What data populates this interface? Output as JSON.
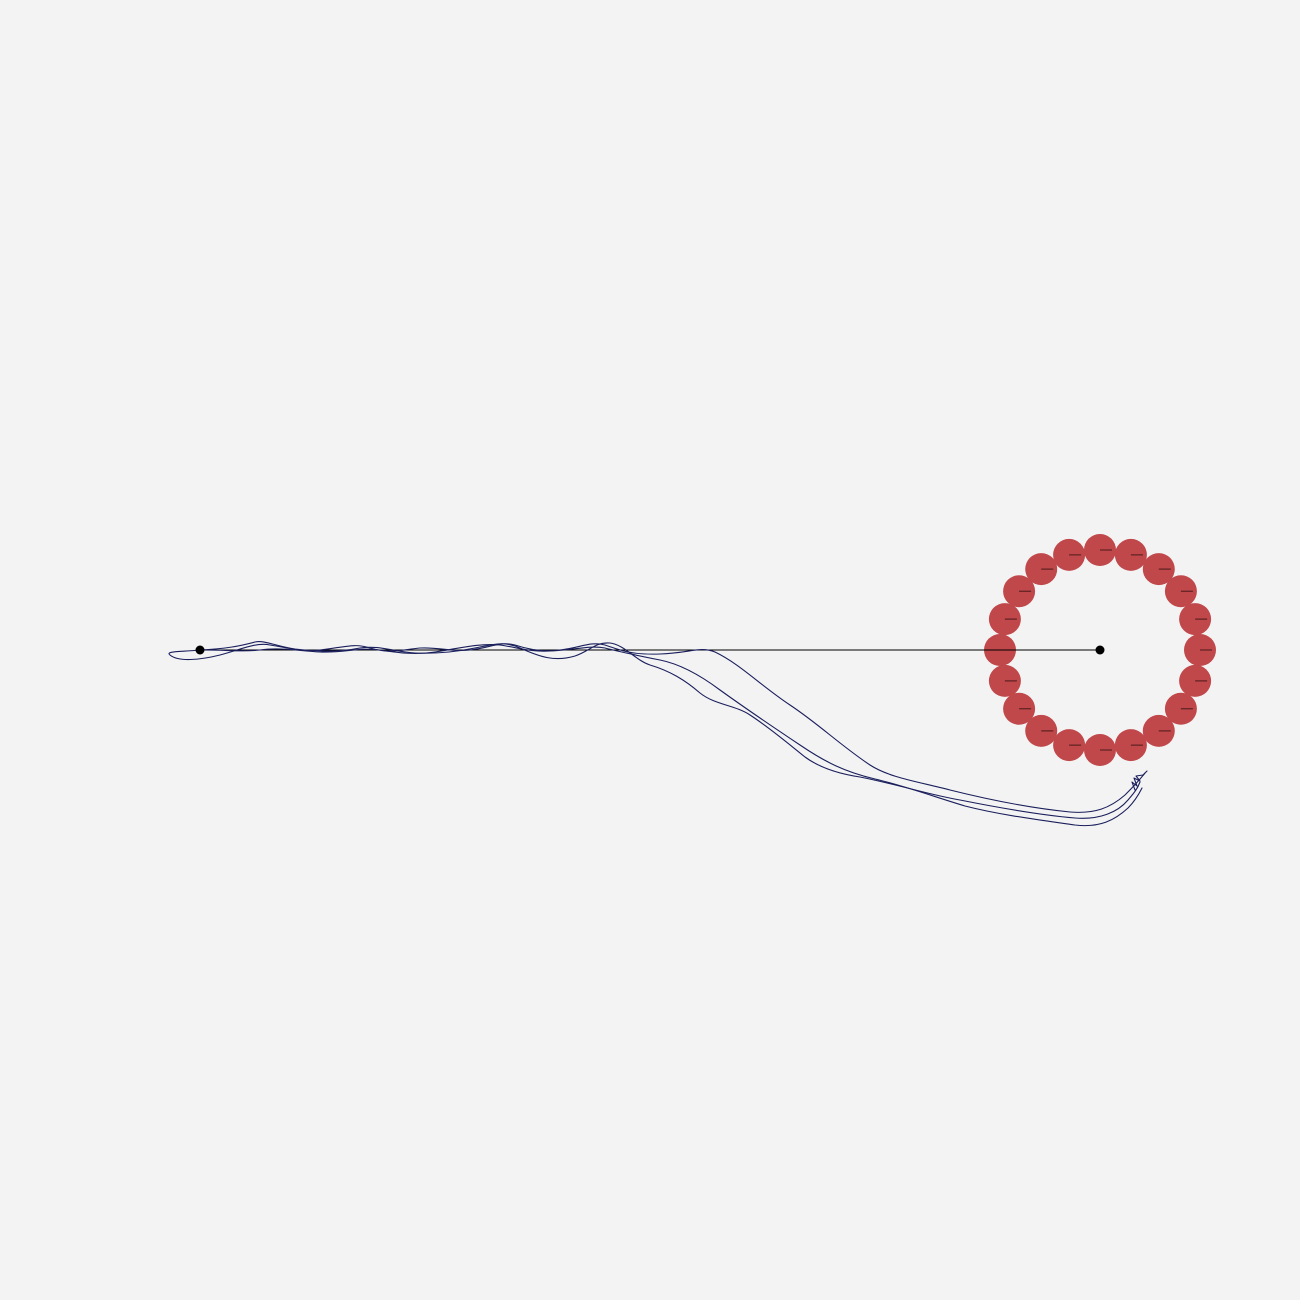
{
  "colors": {
    "background": "#f3f3f3",
    "trajectory": "#1a1f5c",
    "obstacle": "#c0474a",
    "obstacle_tick": "#4a1a1a",
    "reach_line": "#000000",
    "marker": "#000000"
  },
  "scene": {
    "start_marker": "start-point",
    "target_marker": "target-center",
    "obstacle_count": 20,
    "trajectory_count": 3
  }
}
